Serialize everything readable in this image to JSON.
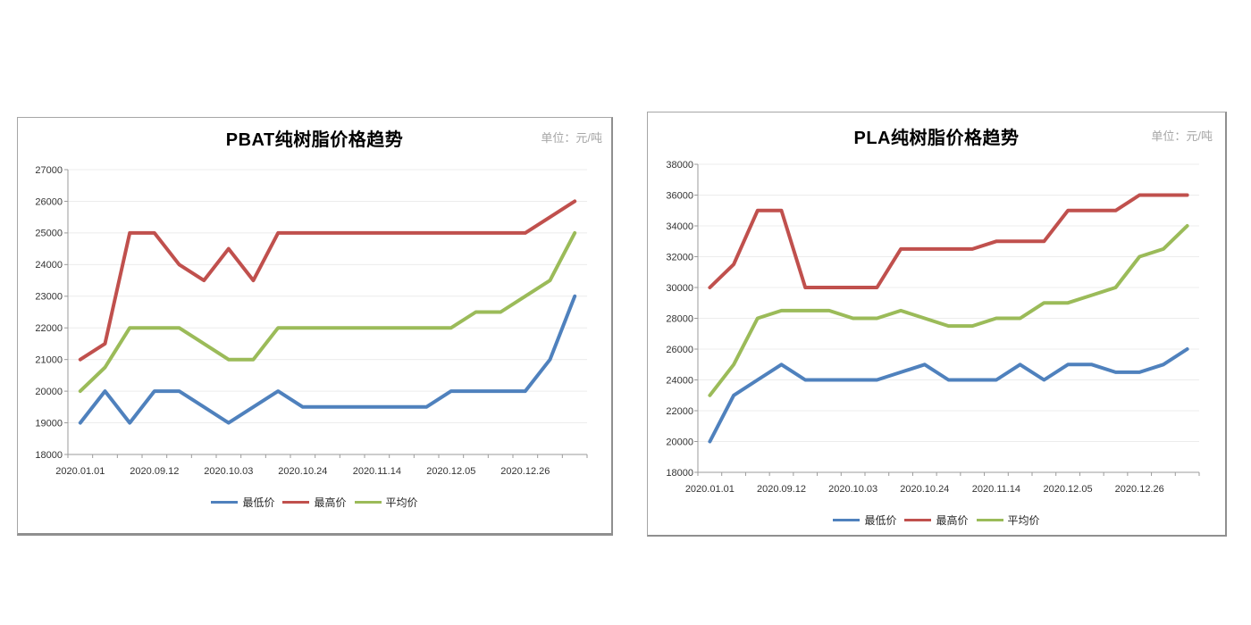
{
  "page": {
    "background": "#ffffff"
  },
  "chart_data": [
    {
      "id": "pbat",
      "type": "line",
      "title": "PBAT纯树脂价格趋势",
      "unit_label": "单位：元/吨",
      "x_labels": [
        "2020.01.01",
        "2020.09.12",
        "2020.10.03",
        "2020.10.24",
        "2020.11.14",
        "2020.12.05",
        "2020.12.26"
      ],
      "label_every": 3,
      "n_points": 21,
      "ylim": [
        18000,
        27000
      ],
      "ystep": 1000,
      "y_ticks": [
        27000,
        26000,
        25000,
        24000,
        23000,
        22000,
        21000,
        20000,
        19000,
        18000
      ],
      "grid": true,
      "legend_position": "bottom",
      "series": [
        {
          "name": "最低价",
          "color": "#4F81BD",
          "values": [
            19000,
            20000,
            19000,
            20000,
            20000,
            19500,
            19000,
            19500,
            20000,
            19500,
            19500,
            19500,
            19500,
            19500,
            19500,
            20000,
            20000,
            20000,
            20000,
            21000,
            23000
          ]
        },
        {
          "name": "最高价",
          "color": "#C0504D",
          "values": [
            21000,
            21500,
            25000,
            25000,
            24000,
            23500,
            24500,
            23500,
            25000,
            25000,
            25000,
            25000,
            25000,
            25000,
            25000,
            25000,
            25000,
            25000,
            25000,
            25500,
            26000
          ]
        },
        {
          "name": "平均价",
          "color": "#9BBB59",
          "values": [
            20000,
            20750,
            22000,
            22000,
            22000,
            21500,
            21000,
            21000,
            22000,
            22000,
            22000,
            22000,
            22000,
            22000,
            22000,
            22000,
            22500,
            22500,
            23000,
            23500,
            25000
          ]
        }
      ]
    },
    {
      "id": "pla",
      "type": "line",
      "title": "PLA纯树脂价格趋势",
      "unit_label": "单位：元/吨",
      "x_labels": [
        "2020.01.01",
        "2020.09.12",
        "2020.10.03",
        "2020.10.24",
        "2020.11.14",
        "2020.12.05",
        "2020.12.26"
      ],
      "label_every": 3,
      "n_points": 21,
      "ylim": [
        18000,
        38000
      ],
      "ystep": 2000,
      "y_ticks": [
        38000,
        36000,
        34000,
        32000,
        30000,
        28000,
        26000,
        24000,
        22000,
        20000,
        18000
      ],
      "grid": true,
      "legend_position": "bottom",
      "series": [
        {
          "name": "最低价",
          "color": "#4F81BD",
          "values": [
            20000,
            23000,
            24000,
            25000,
            24000,
            24000,
            24000,
            24000,
            24500,
            25000,
            24000,
            24000,
            24000,
            25000,
            24000,
            25000,
            25000,
            24500,
            24500,
            25000,
            26000
          ]
        },
        {
          "name": "最高价",
          "color": "#C0504D",
          "values": [
            30000,
            31500,
            35000,
            35000,
            30000,
            30000,
            30000,
            30000,
            32500,
            32500,
            32500,
            32500,
            33000,
            33000,
            33000,
            35000,
            35000,
            35000,
            36000,
            36000,
            36000
          ]
        },
        {
          "name": "平均价",
          "color": "#9BBB59",
          "values": [
            23000,
            25000,
            28000,
            28500,
            28500,
            28500,
            28000,
            28000,
            28500,
            28000,
            27500,
            27500,
            28000,
            28000,
            29000,
            29000,
            29500,
            30000,
            32000,
            32500,
            34000
          ]
        }
      ]
    }
  ],
  "style": {
    "gridline_color": "#ececec",
    "axis_color": "#9b9b9b",
    "axis_text_color": "#333333"
  }
}
